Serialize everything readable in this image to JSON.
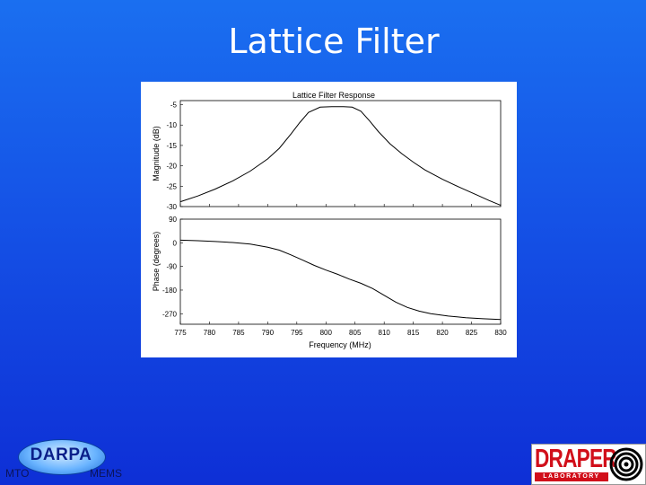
{
  "slide": {
    "title": "Lattice Filter"
  },
  "figure": {
    "title": "Lattice Filter Response",
    "xlabel": "Frequency (MHz)",
    "magnitude": {
      "ylabel": "Magnitude (dB)",
      "yticks": [
        "-5",
        "-10",
        "-15",
        "-20",
        "-25",
        "-30"
      ]
    },
    "phase": {
      "ylabel": "Phase (degrees)",
      "yticks": [
        "90",
        "0",
        "-90",
        "-180",
        "-270"
      ]
    },
    "xticks": [
      "775",
      "780",
      "785",
      "790",
      "795",
      "800",
      "805",
      "810",
      "815",
      "820",
      "825",
      "830"
    ]
  },
  "chart_data": [
    {
      "type": "line",
      "title": "Lattice Filter Response",
      "xlabel": "Frequency (MHz)",
      "ylabel": "Magnitude (dB)",
      "xlim": [
        775,
        830
      ],
      "ylim": [
        -30,
        -4
      ],
      "grid": false,
      "x": [
        775,
        778,
        781,
        784,
        787,
        790,
        792,
        794,
        795.5,
        797,
        799,
        801,
        803,
        804.5,
        806,
        807.5,
        809,
        811,
        813,
        815,
        817,
        820,
        823,
        826,
        828,
        830
      ],
      "y": [
        -28.8,
        -27.4,
        -25.7,
        -23.7,
        -21.3,
        -18.3,
        -15.7,
        -12.2,
        -9.4,
        -6.9,
        -5.6,
        -5.5,
        -5.5,
        -5.6,
        -6.6,
        -9.0,
        -11.6,
        -14.6,
        -17.0,
        -19.1,
        -21.0,
        -23.3,
        -25.3,
        -27.2,
        -28.5,
        -29.7
      ]
    },
    {
      "type": "line",
      "xlabel": "Frequency (MHz)",
      "ylabel": "Phase (degrees)",
      "xlim": [
        775,
        830
      ],
      "ylim": [
        -310,
        90
      ],
      "grid": false,
      "x": [
        775,
        778,
        781,
        784,
        787,
        790,
        792,
        794,
        796,
        798,
        800,
        802,
        804,
        806,
        808,
        810,
        812,
        814,
        816,
        818,
        821,
        824,
        827,
        830
      ],
      "y": [
        10,
        8,
        5,
        1,
        -5,
        -17,
        -28,
        -46,
        -66,
        -86,
        -104,
        -120,
        -138,
        -154,
        -174,
        -200,
        -226,
        -246,
        -260,
        -270,
        -279,
        -285,
        -289,
        -292
      ]
    }
  ],
  "logos": {
    "darpa": {
      "name": "DARPA",
      "left": "MTO",
      "right": "MEMS"
    },
    "draper": {
      "name": "DRAPER",
      "sub": "LABORATORY"
    }
  },
  "colors": {
    "background_top": "#1a6ff0",
    "background_bottom": "#0e2fd6",
    "draper_red": "#d10f1a"
  }
}
